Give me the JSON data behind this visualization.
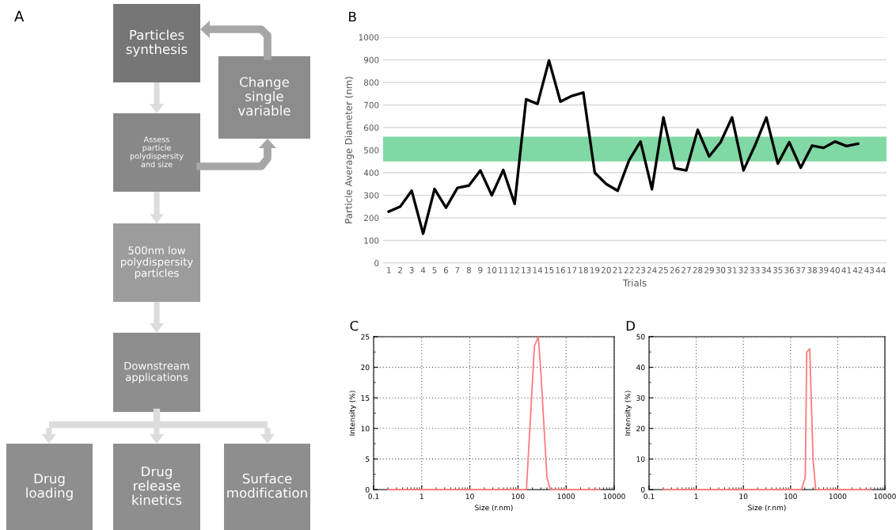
{
  "chart_data": [
    {
      "type": "other",
      "title": "A",
      "annotations": [
        "Particles synthesis",
        "Change single variable",
        "Assess particle polydispersity and size",
        "500nm low polydispersity particles",
        "Downstream applications",
        "Drug loading",
        "Drug release kinetics",
        "Surface modification"
      ]
    },
    {
      "type": "line",
      "title": "B",
      "xlabel": "Trials",
      "ylabel": "Particle Average Diameter (nm)",
      "categories": [
        "1",
        "2",
        "3",
        "4",
        "5",
        "6",
        "7",
        "8",
        "9",
        "10",
        "11",
        "12",
        "13",
        "14",
        "15",
        "16",
        "17",
        "18",
        "19",
        "20",
        "21",
        "22",
        "23",
        "24",
        "25",
        "26",
        "27",
        "28",
        "29",
        "30",
        "31",
        "32",
        "33",
        "34",
        "35",
        "36",
        "37",
        "38",
        "39",
        "40",
        "41",
        "42",
        "43",
        "44"
      ],
      "series": [
        {
          "color": "#000000",
          "values": [
            228,
            250,
            320,
            130,
            328,
            245,
            333,
            343,
            410,
            300,
            412,
            262,
            725,
            705,
            897,
            715,
            740,
            755,
            400,
            350,
            320,
            455,
            538,
            327,
            645,
            420,
            410,
            590,
            472,
            535,
            645,
            410,
            520,
            645,
            440,
            535,
            422,
            520,
            510,
            538,
            518,
            528,
            null,
            null
          ]
        }
      ],
      "ylim": [
        0,
        1000
      ],
      "yticks": [
        0,
        100,
        200,
        300,
        400,
        500,
        600,
        700,
        800,
        900,
        1000
      ],
      "grid": "y",
      "bands": [
        {
          "axis": "y",
          "from": 450,
          "to": 560,
          "color": "#80d8a4"
        }
      ]
    },
    {
      "type": "line",
      "title": "C",
      "xlabel": "Size (r.nm)",
      "ylabel": "Intensity (%)",
      "log": "x",
      "series": [
        {
          "color": "#ff7b7b",
          "x": [
            0.2,
            150,
            220,
            265,
            300,
            400,
            470,
            5000
          ],
          "values": [
            0,
            0,
            23.5,
            25,
            19,
            2,
            0,
            0
          ]
        }
      ],
      "xlim": [
        0.1,
        10000
      ],
      "xticks": [
        0.1,
        1,
        10,
        100,
        1000,
        10000
      ],
      "ylim": [
        0,
        25
      ],
      "yticks": [
        0,
        5,
        10,
        15,
        20,
        25
      ],
      "grid": true,
      "line_style": "solid"
    },
    {
      "type": "line",
      "title": "D",
      "xlabel": "Size (r.nm)",
      "ylabel": "Intensity (%)",
      "log": "x",
      "series": [
        {
          "color": "#ff7b7b",
          "x": [
            0.2,
            170,
            205,
            220,
            255,
            300,
            340,
            5000
          ],
          "values": [
            0,
            0,
            4,
            45,
            46,
            10,
            0,
            0
          ]
        }
      ],
      "xlim": [
        0.1,
        10000
      ],
      "xticks": [
        0.1,
        1,
        10,
        100,
        1000,
        10000
      ],
      "ylim": [
        0,
        50
      ],
      "yticks": [
        0,
        10,
        20,
        30,
        40,
        50
      ],
      "grid": true,
      "line_style": "solid"
    }
  ]
}
